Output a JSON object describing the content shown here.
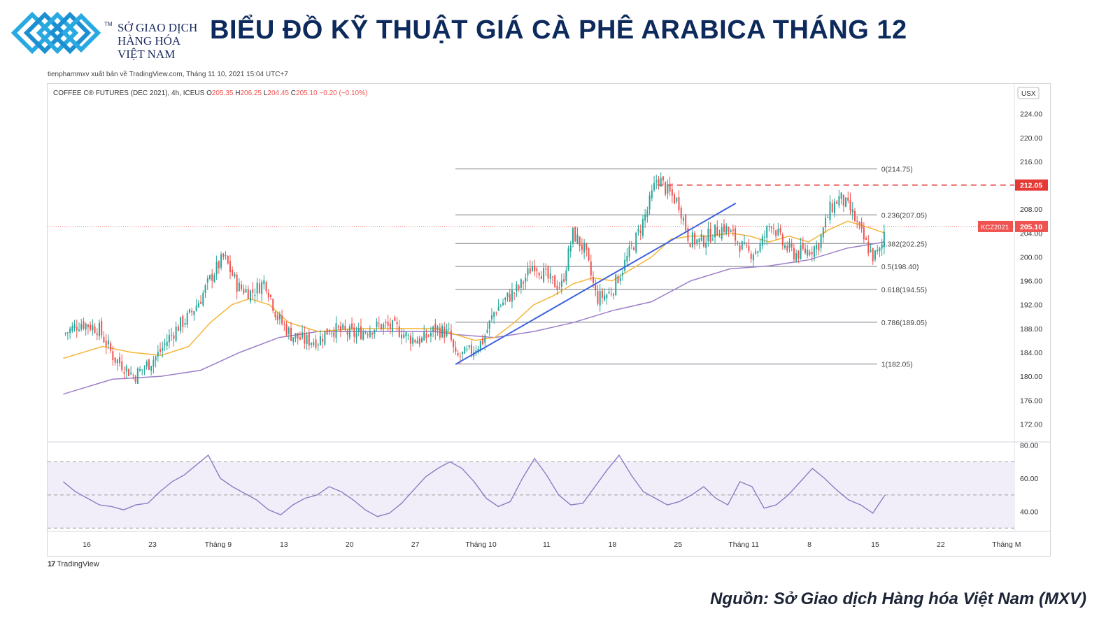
{
  "header": {
    "logo_line1": "SỞ GIAO DỊCH",
    "logo_line2": "HÀNG HÓA",
    "logo_line3": "VIỆT NAM",
    "logo_tm": "TM",
    "title": "BIỂU ĐỒ KỸ THUẬT GIÁ CÀ PHÊ ARABICA THÁNG 12",
    "published": "tienphammxv xuất bản về TradingView.com, Tháng 11 10, 2021 15:04 UTC+7"
  },
  "footer": {
    "tradingview": "TradingView",
    "source": "Nguồn: Sở Giao dịch Hàng hóa Việt Nam (MXV)"
  },
  "colors": {
    "up": "#26a69a",
    "down": "#ef5350",
    "ma_fast": "#f5b536",
    "ma_slow": "#9c7fc9",
    "trendline": "#3d63dd",
    "fib": "#787b86",
    "resistance": "#e53935",
    "rsi": "#8e7cc3"
  },
  "chart_data": {
    "type": "candlestick",
    "legend": {
      "symbol": "COFFEE C® FUTURES (DEC 2021), 4h, ICEUS",
      "o_label": "O",
      "o": "205.35",
      "h_label": "H",
      "h": "206.25",
      "l_label": "L",
      "l": "204.45",
      "c_label": "C",
      "c": "205.10",
      "change": "−0.20 (−0.10%)"
    },
    "currency": "USX",
    "y_ticks": [
      "224.00",
      "220.00",
      "216.00",
      "212.00",
      "208.00",
      "204.00",
      "200.00",
      "196.00",
      "192.00",
      "188.00",
      "184.00",
      "180.00",
      "176.00",
      "172.00"
    ],
    "ylim": [
      169,
      229
    ],
    "x_ticks": [
      "16",
      "23",
      "Tháng 9",
      "13",
      "20",
      "27",
      "Tháng 10",
      "11",
      "18",
      "25",
      "Tháng 11",
      "8",
      "15",
      "22",
      "Tháng M"
    ],
    "fibonacci": [
      {
        "label": "0(214.75)",
        "value": 214.75
      },
      {
        "label": "0.236(207.05)",
        "value": 207.05
      },
      {
        "label": "0.382(202.25)",
        "value": 202.25
      },
      {
        "label": "0.5(198.40)",
        "value": 198.4
      },
      {
        "label": "0.618(194.55)",
        "value": 194.55
      },
      {
        "label": "0.786(189.05)",
        "value": 189.05
      },
      {
        "label": "1(182.05)",
        "value": 182.05
      }
    ],
    "resistance": {
      "label": "212.05",
      "value": 212.05
    },
    "last_price": {
      "symbol": "KCZ2021",
      "label": "205.10",
      "value": 205.1
    },
    "trendline": {
      "from": [
        20.0,
        182.0
      ],
      "to": [
        34.3,
        209.0
      ]
    },
    "price_path": [
      [
        0.0,
        187.0
      ],
      [
        0.9,
        189.0
      ],
      [
        1.8,
        188.0
      ],
      [
        2.6,
        183.0
      ],
      [
        3.0,
        182.0
      ],
      [
        3.6,
        180.0
      ],
      [
        4.3,
        182.0
      ],
      [
        4.8,
        183.5
      ],
      [
        5.4,
        186.5
      ],
      [
        5.9,
        188.5
      ],
      [
        6.4,
        190.0
      ],
      [
        7.0,
        193.0
      ],
      [
        7.6,
        197.0
      ],
      [
        8.2,
        200.0
      ],
      [
        8.9,
        195.0
      ],
      [
        9.6,
        194.0
      ],
      [
        10.3,
        196.0
      ],
      [
        10.9,
        190.0
      ],
      [
        11.6,
        187.0
      ],
      [
        12.3,
        186.0
      ],
      [
        13.0,
        186.0
      ],
      [
        13.6,
        188.0
      ],
      [
        14.2,
        187.5
      ],
      [
        14.9,
        187.0
      ],
      [
        15.6,
        188.0
      ],
      [
        16.2,
        188.5
      ],
      [
        17.0,
        188.0
      ],
      [
        17.6,
        186.5
      ],
      [
        18.3,
        186.0
      ],
      [
        19.0,
        188.0
      ],
      [
        19.7,
        187.0
      ],
      [
        20.0,
        183.0
      ],
      [
        20.7,
        184.0
      ],
      [
        21.4,
        186.0
      ],
      [
        22.0,
        191.0
      ],
      [
        22.6,
        193.0
      ],
      [
        23.3,
        195.0
      ],
      [
        24.0,
        199.0
      ],
      [
        24.8,
        196.0
      ],
      [
        25.4,
        195.0
      ],
      [
        26.0,
        204.0
      ],
      [
        26.6,
        201.0
      ],
      [
        27.2,
        193.0
      ],
      [
        27.9,
        194.0
      ],
      [
        28.5,
        198.0
      ],
      [
        29.2,
        203.0
      ],
      [
        29.8,
        208.0
      ],
      [
        30.3,
        213.5
      ],
      [
        30.8,
        211.0
      ],
      [
        31.4,
        209.0
      ],
      [
        31.9,
        203.0
      ],
      [
        32.5,
        202.5
      ],
      [
        33.1,
        204.0
      ],
      [
        33.7,
        205.0
      ],
      [
        34.3,
        203.0
      ],
      [
        34.9,
        200.5
      ],
      [
        35.5,
        201.5
      ],
      [
        36.1,
        206.0
      ],
      [
        36.7,
        202.0
      ],
      [
        37.3,
        200.5
      ],
      [
        37.9,
        201.0
      ],
      [
        38.5,
        202.0
      ],
      [
        39.1,
        208.0
      ],
      [
        39.6,
        210.0
      ],
      [
        40.2,
        207.5
      ],
      [
        40.8,
        203.0
      ],
      [
        41.3,
        200.0
      ],
      [
        41.7,
        201.0
      ],
      [
        41.9,
        205.1
      ]
    ],
    "ma_fast": [
      [
        0.0,
        183.0
      ],
      [
        2.0,
        185.0
      ],
      [
        3.5,
        184.0
      ],
      [
        5.0,
        183.5
      ],
      [
        6.4,
        185.0
      ],
      [
        7.5,
        189.0
      ],
      [
        8.6,
        192.0
      ],
      [
        9.5,
        193.0
      ],
      [
        10.5,
        192.0
      ],
      [
        11.5,
        189.0
      ],
      [
        13.0,
        187.5
      ],
      [
        15.0,
        188.0
      ],
      [
        17.0,
        188.0
      ],
      [
        19.0,
        188.0
      ],
      [
        20.0,
        187.0
      ],
      [
        21.0,
        186.0
      ],
      [
        22.0,
        186.5
      ],
      [
        23.0,
        189.0
      ],
      [
        24.0,
        192.0
      ],
      [
        25.0,
        193.5
      ],
      [
        26.0,
        195.5
      ],
      [
        27.0,
        196.5
      ],
      [
        28.0,
        196.0
      ],
      [
        29.0,
        198.0
      ],
      [
        30.0,
        200.0
      ],
      [
        31.0,
        203.0
      ],
      [
        32.0,
        203.5
      ],
      [
        33.0,
        203.5
      ],
      [
        34.0,
        204.0
      ],
      [
        35.0,
        203.5
      ],
      [
        36.0,
        202.5
      ],
      [
        37.0,
        203.5
      ],
      [
        38.0,
        202.5
      ],
      [
        39.0,
        204.5
      ],
      [
        40.0,
        206.0
      ],
      [
        41.0,
        205.0
      ],
      [
        41.9,
        204.0
      ]
    ],
    "ma_slow": [
      [
        0.0,
        177.0
      ],
      [
        2.5,
        179.5
      ],
      [
        5.0,
        180.0
      ],
      [
        7.0,
        181.0
      ],
      [
        9.0,
        184.0
      ],
      [
        11.0,
        186.5
      ],
      [
        13.0,
        187.5
      ],
      [
        15.0,
        187.5
      ],
      [
        17.0,
        187.5
      ],
      [
        19.0,
        187.5
      ],
      [
        20.0,
        187.0
      ],
      [
        22.0,
        186.5
      ],
      [
        24.0,
        187.5
      ],
      [
        26.0,
        189.0
      ],
      [
        28.0,
        191.0
      ],
      [
        30.0,
        192.5
      ],
      [
        32.0,
        196.0
      ],
      [
        34.0,
        198.0
      ],
      [
        36.0,
        198.5
      ],
      [
        38.0,
        199.5
      ],
      [
        40.0,
        201.5
      ],
      [
        41.9,
        202.5
      ]
    ],
    "rsi": {
      "y_ticks": [
        "80.00",
        "60.00",
        "40.00"
      ],
      "bands": [
        70,
        50,
        30
      ],
      "ylim": [
        28,
        82
      ],
      "values": [
        58,
        52,
        48,
        44,
        43,
        41,
        44,
        45,
        52,
        58,
        62,
        68,
        74,
        60,
        55,
        51,
        47,
        41,
        38,
        44,
        48,
        50,
        55,
        52,
        47,
        41,
        37,
        39,
        45,
        53,
        61,
        66,
        70,
        66,
        58,
        48,
        43,
        46,
        60,
        72,
        62,
        50,
        44,
        45,
        55,
        65,
        74,
        62,
        52,
        48,
        44,
        46,
        50,
        55,
        48,
        44,
        58,
        55,
        42,
        44,
        50,
        58,
        66,
        60,
        53,
        47,
        44,
        39,
        50
      ]
    }
  }
}
